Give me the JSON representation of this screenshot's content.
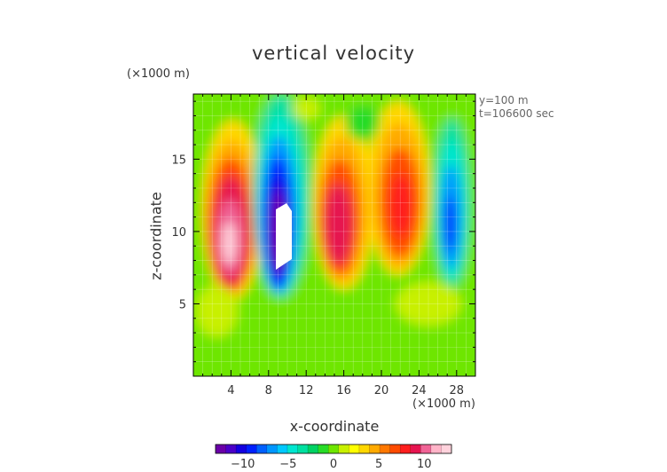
{
  "chart_data": {
    "type": "heatmap",
    "title": "vertical velocity",
    "xlabel": "x-coordinate",
    "ylabel": "z-coordinate",
    "x_unit": "(×1000 m)",
    "y_unit": "(×1000 m)",
    "info": [
      "y=100 m",
      "t=106600 sec"
    ],
    "xlim": [
      0,
      30
    ],
    "ylim": [
      0,
      19.5
    ],
    "x_ticks": [
      4,
      8,
      12,
      16,
      20,
      24,
      28
    ],
    "y_ticks": [
      5,
      10,
      15
    ],
    "colorbar": {
      "min": -13,
      "max": 13,
      "ticks": [
        -10,
        -5,
        0,
        5,
        10
      ],
      "colors": [
        "#6a00a8",
        "#4b00c8",
        "#1400e0",
        "#0020ff",
        "#0060ff",
        "#0096ff",
        "#00c8ff",
        "#00e6d0",
        "#00e0a0",
        "#00d264",
        "#28dc28",
        "#6ee600",
        "#c8f000",
        "#ffff00",
        "#ffd700",
        "#ffaa00",
        "#ff7800",
        "#ff4b00",
        "#ff1e1e",
        "#e61450",
        "#f06496",
        "#ffb4c8",
        "#ffd2dc"
      ]
    },
    "features": [
      {
        "kind": "updraft",
        "x": 4,
        "z": 9.5,
        "peak": 13
      },
      {
        "kind": "downdraft",
        "x": 9,
        "z": 10.5,
        "peak": -13
      },
      {
        "kind": "updraft",
        "x": 15.5,
        "z": 10.5,
        "peak": 10
      },
      {
        "kind": "updraft",
        "x": 22,
        "z": 12,
        "peak": 8
      },
      {
        "kind": "downdraft",
        "x": 27.5,
        "z": 11,
        "peak": -9
      }
    ]
  }
}
